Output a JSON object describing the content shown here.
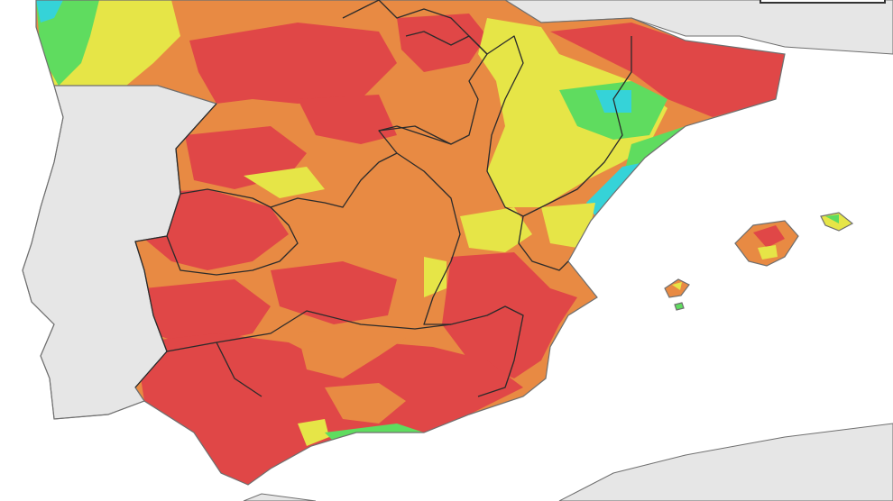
{
  "map": {
    "colors": {
      "sea": "#ffffff",
      "foreign_land": "#e6e6e6",
      "coast": "#6f6f6f",
      "border": "#2b2b2b",
      "level_very_high": "#e04747",
      "level_high": "#e88a43",
      "level_medium": "#e6e547",
      "level_low": "#5fdc5f",
      "level_very_low": "#35d3d8"
    }
  }
}
